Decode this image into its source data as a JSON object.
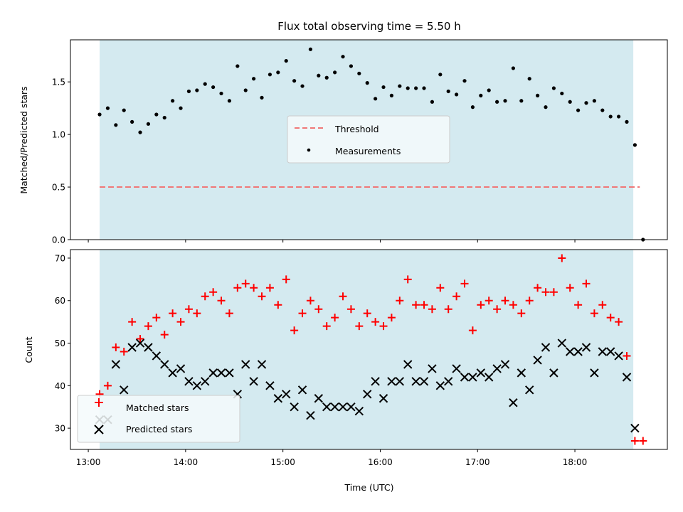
{
  "figure": {
    "title": "Flux total observing time = 5.50 h",
    "shading_color": "#d4eaf0",
    "shading_range": [
      "13:07",
      "18:36"
    ]
  },
  "chart_data": [
    {
      "type": "scatter",
      "ylabel": "Matched/Predicted stars",
      "xlabel": "",
      "xlim": [
        "12:49",
        "18:57"
      ],
      "ylim": [
        0,
        1.9
      ],
      "yticks": [
        "0.0",
        "0.5",
        "1.0",
        "1.5"
      ],
      "grid": false,
      "legend_position": "center",
      "series": [
        {
          "name": "Threshold",
          "kind": "dashed-line",
          "color": "#f07878",
          "x": [
            "13:07",
            "18:40"
          ],
          "y": [
            0.5,
            0.5
          ]
        },
        {
          "name": "Measurements",
          "kind": "dots",
          "color": "#000000",
          "x": [
            "13:07",
            "13:12",
            "13:17",
            "13:22",
            "13:27",
            "13:32",
            "13:37",
            "13:42",
            "13:47",
            "13:52",
            "13:57",
            "14:02",
            "14:07",
            "14:12",
            "14:17",
            "14:22",
            "14:27",
            "14:32",
            "14:37",
            "14:42",
            "14:47",
            "14:52",
            "14:57",
            "15:02",
            "15:07",
            "15:12",
            "15:17",
            "15:22",
            "15:27",
            "15:32",
            "15:37",
            "15:42",
            "15:47",
            "15:52",
            "15:57",
            "16:02",
            "16:07",
            "16:12",
            "16:17",
            "16:22",
            "16:27",
            "16:32",
            "16:37",
            "16:42",
            "16:47",
            "16:52",
            "16:57",
            "17:02",
            "17:07",
            "17:12",
            "17:17",
            "17:22",
            "17:27",
            "17:32",
            "17:37",
            "17:42",
            "17:47",
            "17:52",
            "17:57",
            "18:02",
            "18:07",
            "18:12",
            "18:17",
            "18:22",
            "18:27",
            "18:32",
            "18:37",
            "18:42"
          ],
          "y": [
            1.19,
            1.25,
            1.09,
            1.23,
            1.12,
            1.02,
            1.1,
            1.19,
            1.16,
            1.32,
            1.25,
            1.41,
            1.42,
            1.48,
            1.45,
            1.39,
            1.32,
            1.65,
            1.42,
            1.53,
            1.35,
            1.57,
            1.59,
            1.7,
            1.51,
            1.46,
            1.81,
            1.56,
            1.54,
            1.59,
            1.74,
            1.65,
            1.58,
            1.49,
            1.34,
            1.45,
            1.37,
            1.46,
            1.44,
            1.44,
            1.44,
            1.31,
            1.57,
            1.41,
            1.38,
            1.51,
            1.26,
            1.37,
            1.42,
            1.31,
            1.32,
            1.63,
            1.32,
            1.53,
            1.37,
            1.26,
            1.44,
            1.39,
            1.31,
            1.23,
            1.3,
            1.32,
            1.23,
            1.17,
            1.17,
            1.12,
            0.9,
            0.0
          ]
        }
      ]
    },
    {
      "type": "scatter",
      "ylabel": "Count",
      "xlabel": "Time (UTC)",
      "xlim": [
        "12:49",
        "18:57"
      ],
      "ylim": [
        25,
        72
      ],
      "yticks": [
        "30",
        "40",
        "50",
        "60",
        "70"
      ],
      "xticks": [
        "13:00",
        "14:00",
        "15:00",
        "16:00",
        "17:00",
        "18:00"
      ],
      "grid": false,
      "legend_position": "lower-left",
      "series": [
        {
          "name": "Matched stars",
          "kind": "plus",
          "color": "#ff0000",
          "x": [
            "13:07",
            "13:12",
            "13:17",
            "13:22",
            "13:27",
            "13:32",
            "13:37",
            "13:42",
            "13:47",
            "13:52",
            "13:57",
            "14:02",
            "14:07",
            "14:12",
            "14:17",
            "14:22",
            "14:27",
            "14:32",
            "14:37",
            "14:42",
            "14:47",
            "14:52",
            "14:57",
            "15:02",
            "15:07",
            "15:12",
            "15:17",
            "15:22",
            "15:27",
            "15:32",
            "15:37",
            "15:42",
            "15:47",
            "15:52",
            "15:57",
            "16:02",
            "16:07",
            "16:12",
            "16:17",
            "16:22",
            "16:27",
            "16:32",
            "16:37",
            "16:42",
            "16:47",
            "16:52",
            "16:57",
            "17:02",
            "17:07",
            "17:12",
            "17:17",
            "17:22",
            "17:27",
            "17:32",
            "17:37",
            "17:42",
            "17:47",
            "17:52",
            "17:57",
            "18:02",
            "18:07",
            "18:12",
            "18:17",
            "18:22",
            "18:27",
            "18:32",
            "18:37",
            "18:42"
          ],
          "y": [
            38,
            40,
            49,
            48,
            55,
            51,
            54,
            56,
            52,
            57,
            55,
            58,
            57,
            61,
            62,
            60,
            57,
            63,
            64,
            63,
            61,
            63,
            59,
            65,
            53,
            57,
            60,
            58,
            54,
            56,
            61,
            58,
            54,
            57,
            55,
            54,
            56,
            60,
            65,
            59,
            59,
            58,
            63,
            58,
            61,
            64,
            53,
            59,
            60,
            58,
            60,
            59,
            57,
            60,
            63,
            62,
            62,
            70,
            63,
            59,
            64,
            57,
            59,
            56,
            55,
            47,
            27,
            27
          ]
        },
        {
          "name": "Predicted stars",
          "kind": "x",
          "color": "#000000",
          "x": [
            "13:07",
            "13:12",
            "13:17",
            "13:22",
            "13:27",
            "13:32",
            "13:37",
            "13:42",
            "13:47",
            "13:52",
            "13:57",
            "14:02",
            "14:07",
            "14:12",
            "14:17",
            "14:22",
            "14:27",
            "14:32",
            "14:37",
            "14:42",
            "14:47",
            "14:52",
            "14:57",
            "15:02",
            "15:07",
            "15:12",
            "15:17",
            "15:22",
            "15:27",
            "15:32",
            "15:37",
            "15:42",
            "15:47",
            "15:52",
            "15:57",
            "16:02",
            "16:07",
            "16:12",
            "16:17",
            "16:22",
            "16:27",
            "16:32",
            "16:37",
            "16:42",
            "16:47",
            "16:52",
            "16:57",
            "17:02",
            "17:07",
            "17:12",
            "17:17",
            "17:22",
            "17:27",
            "17:32",
            "17:37",
            "17:42",
            "17:47",
            "17:52",
            "17:57",
            "18:02",
            "18:07",
            "18:12",
            "18:17",
            "18:22",
            "18:27",
            "18:32",
            "18:37"
          ],
          "y": [
            32,
            32,
            45,
            39,
            49,
            50,
            49,
            47,
            45,
            43,
            44,
            41,
            40,
            41,
            43,
            43,
            43,
            38,
            45,
            41,
            45,
            40,
            37,
            38,
            35,
            39,
            33,
            37,
            35,
            35,
            35,
            35,
            34,
            38,
            41,
            37,
            41,
            41,
            45,
            41,
            41,
            44,
            40,
            41,
            44,
            42,
            42,
            43,
            42,
            44,
            45,
            36,
            43,
            39,
            46,
            49,
            43,
            50,
            48,
            48,
            49,
            43,
            48,
            48,
            47,
            42,
            30
          ]
        }
      ]
    }
  ]
}
